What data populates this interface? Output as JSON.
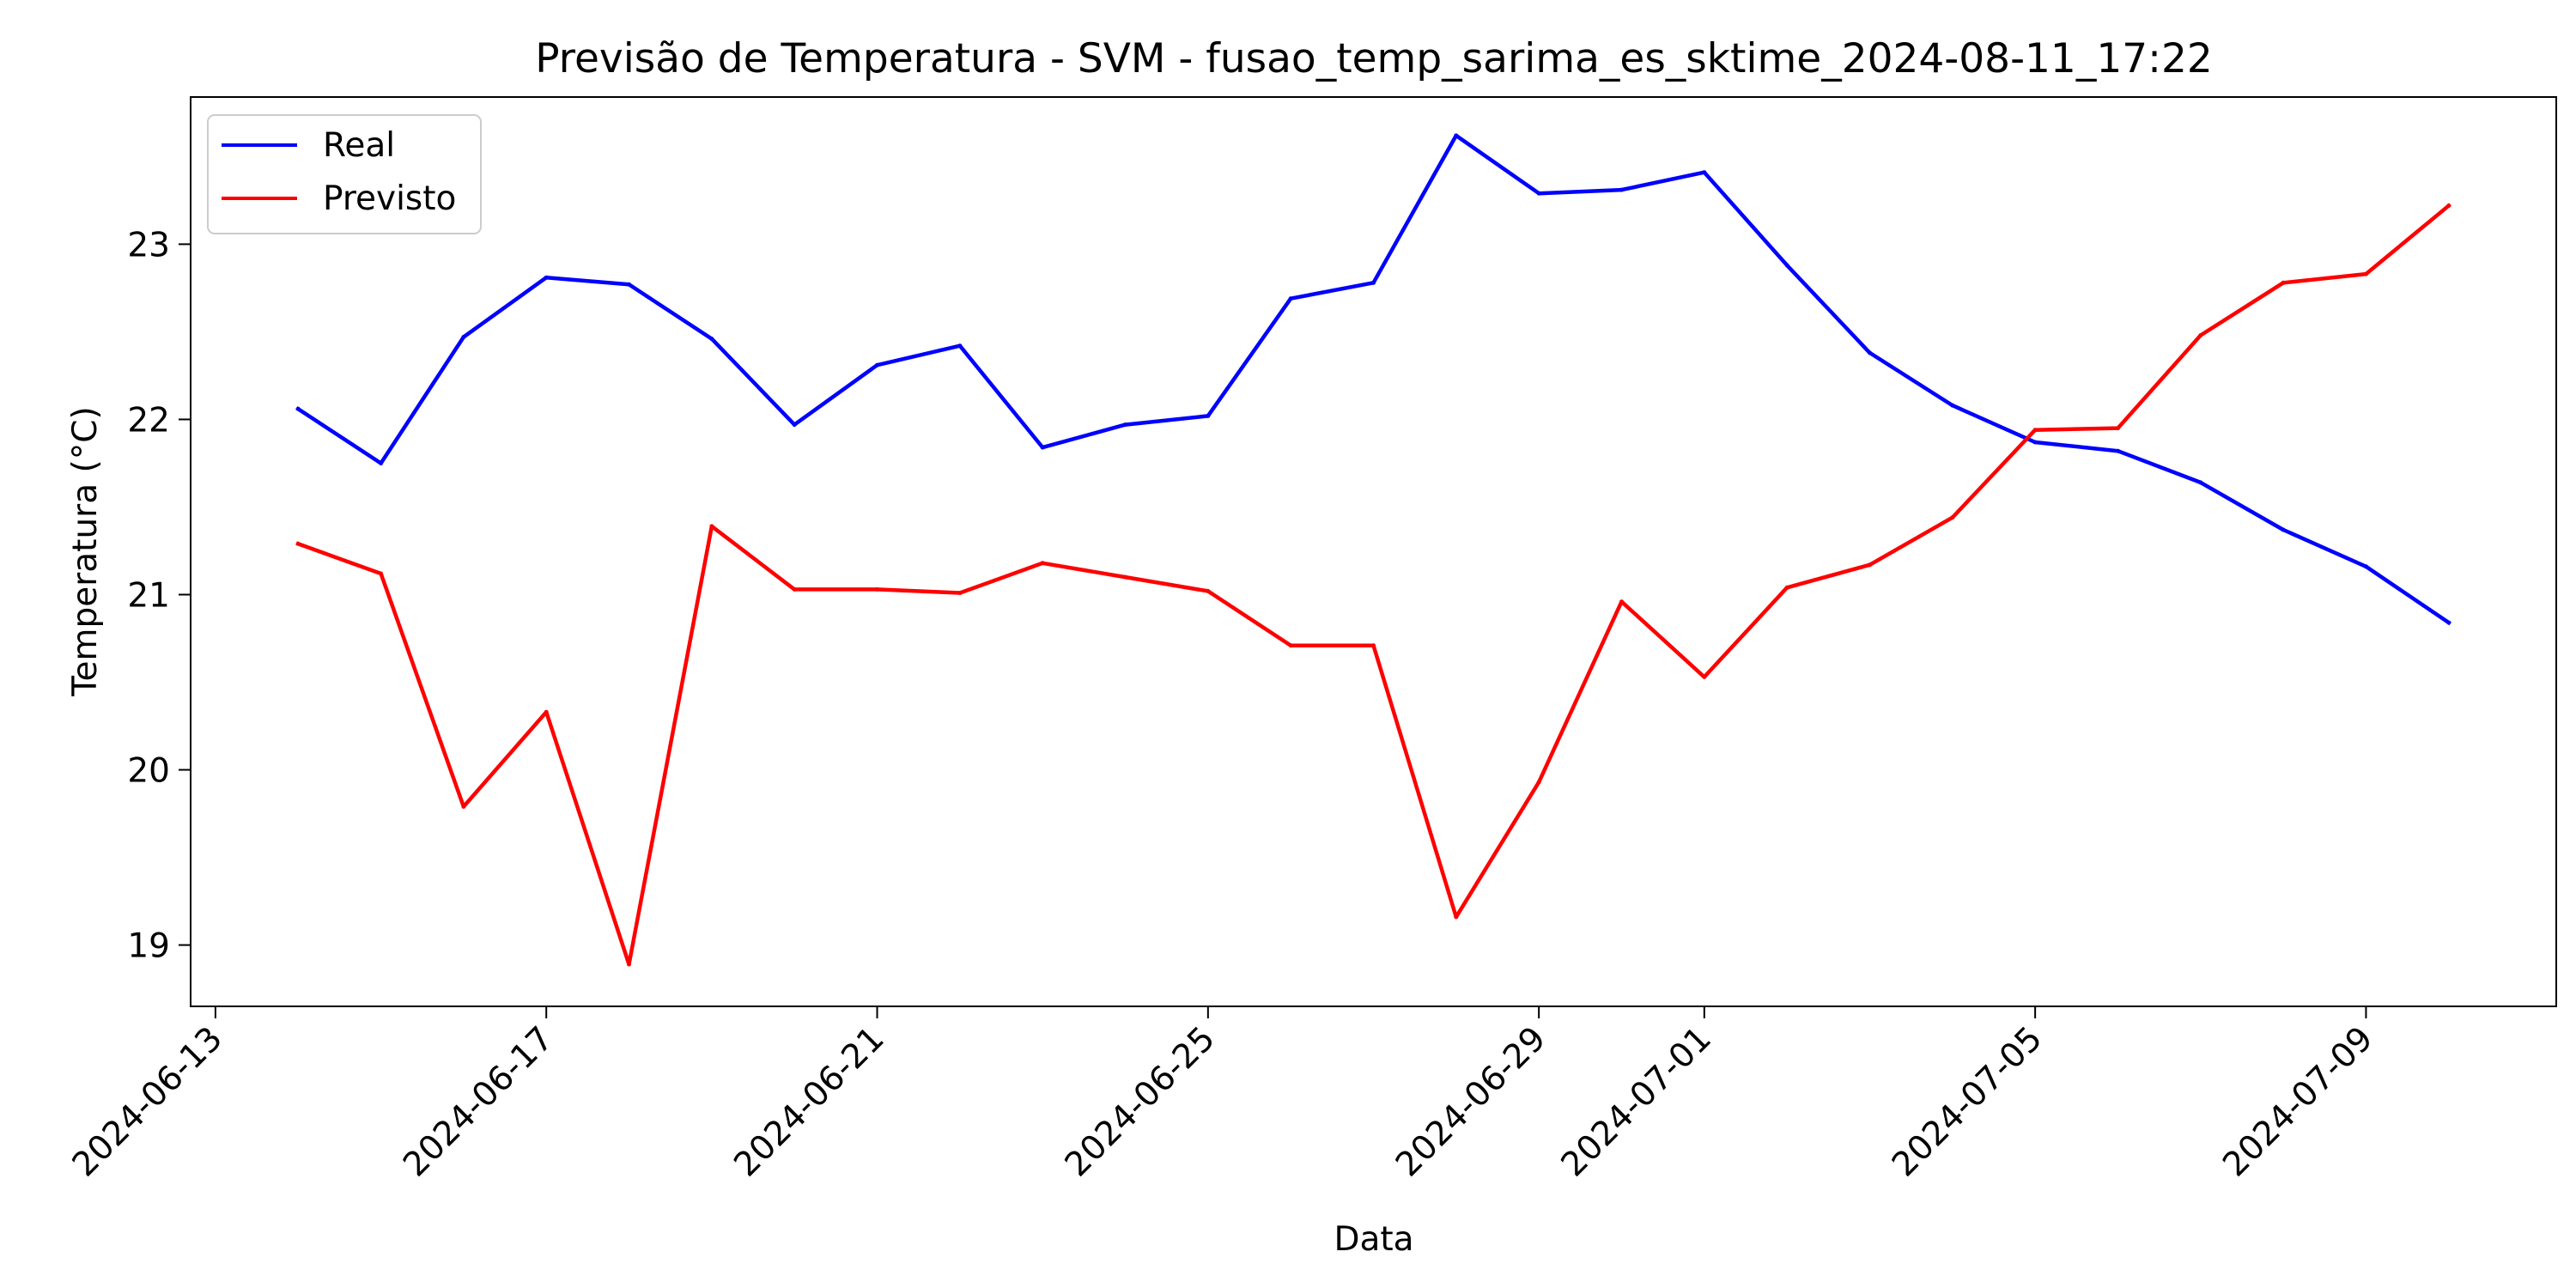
{
  "chart_data": {
    "type": "line",
    "title": "Previsão de Temperatura - SVM - fusao_temp_sarima_es_sktime_2024-08-11_17:22",
    "xlabel": "Data",
    "ylabel": "Temperatura (°C)",
    "x": [
      "2024-06-14",
      "2024-06-15",
      "2024-06-16",
      "2024-06-17",
      "2024-06-18",
      "2024-06-19",
      "2024-06-20",
      "2024-06-21",
      "2024-06-22",
      "2024-06-23",
      "2024-06-24",
      "2024-06-25",
      "2024-06-26",
      "2024-06-27",
      "2024-06-28",
      "2024-06-29",
      "2024-06-30",
      "2024-07-01",
      "2024-07-02",
      "2024-07-03",
      "2024-07-04",
      "2024-07-05",
      "2024-07-06",
      "2024-07-07",
      "2024-07-08",
      "2024-07-09",
      "2024-07-10"
    ],
    "xticks": [
      "2024-06-13",
      "2024-06-17",
      "2024-06-21",
      "2024-06-25",
      "2024-06-29",
      "2024-07-01",
      "2024-07-05",
      "2024-07-09"
    ],
    "xlim": [
      "2024-06-12T16:48",
      "2024-07-11T07:12"
    ],
    "yticks": [
      19,
      20,
      21,
      22,
      23
    ],
    "ylim": [
      18.65,
      23.84
    ],
    "grid": false,
    "legend_position": "top-left",
    "series": [
      {
        "name": "Real",
        "color": "#0000ff",
        "values": [
          22.06,
          21.75,
          22.47,
          22.81,
          22.77,
          22.46,
          21.97,
          22.31,
          22.42,
          21.84,
          21.97,
          22.02,
          22.69,
          22.78,
          23.62,
          23.29,
          23.31,
          23.41,
          22.88,
          22.38,
          22.08,
          21.87,
          21.82,
          21.64,
          21.37,
          21.16,
          20.84
        ]
      },
      {
        "name": "Previsto",
        "color": "#ff0000",
        "values": [
          21.29,
          21.12,
          19.79,
          20.33,
          18.89,
          21.39,
          21.03,
          21.03,
          21.01,
          21.18,
          21.1,
          21.02,
          20.71,
          20.71,
          19.16,
          19.93,
          20.96,
          20.53,
          21.04,
          21.17,
          21.44,
          21.94,
          21.95,
          22.48,
          22.78,
          22.83,
          23.22
        ]
      }
    ]
  }
}
